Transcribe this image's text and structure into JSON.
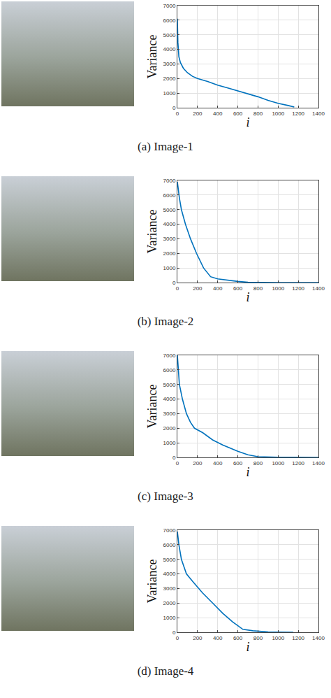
{
  "chart_data": [
    {
      "type": "line",
      "title": "(a) Image-1",
      "x_label": "i",
      "y_label": "Variance",
      "color": "#0072bd",
      "x": [
        0,
        5,
        15,
        30,
        60,
        100,
        150,
        200,
        300,
        400,
        500,
        600,
        700,
        800,
        900,
        1000,
        1100,
        1160
      ],
      "values": [
        6100,
        4500,
        3500,
        3100,
        2700,
        2400,
        2150,
        2000,
        1800,
        1550,
        1350,
        1150,
        950,
        750,
        500,
        300,
        150,
        50
      ],
      "xlim": [
        0,
        1400
      ],
      "ylim": [
        0,
        7000
      ],
      "xticks": [
        0,
        200,
        400,
        600,
        800,
        1000,
        1200,
        1400
      ],
      "yticks": [
        0,
        1000,
        2000,
        3000,
        4000,
        5000,
        6000,
        7000
      ],
      "grid": true
    },
    {
      "type": "line",
      "title": "(b) Image-2",
      "x_label": "i",
      "y_label": "Variance",
      "color": "#0072bd",
      "x": [
        0,
        20,
        40,
        80,
        130,
        190,
        260,
        330,
        400,
        500,
        600,
        700,
        800,
        1000,
        1200,
        1400
      ],
      "values": [
        6900,
        5800,
        5000,
        4000,
        3000,
        2000,
        1000,
        400,
        250,
        150,
        80,
        20,
        5,
        2,
        1,
        0
      ],
      "xlim": [
        0,
        1400
      ],
      "ylim": [
        0,
        7000
      ],
      "xticks": [
        0,
        200,
        400,
        600,
        800,
        1000,
        1200,
        1400
      ],
      "yticks": [
        0,
        1000,
        2000,
        3000,
        4000,
        5000,
        6000,
        7000
      ],
      "grid": true
    },
    {
      "type": "line",
      "title": "(c) Image-3",
      "x_label": "i",
      "y_label": "Variance",
      "color": "#0072bd",
      "x": [
        0,
        10,
        20,
        50,
        90,
        130,
        170,
        250,
        350,
        450,
        500,
        600,
        650,
        700,
        800,
        900,
        1000,
        1200,
        1400
      ],
      "values": [
        7000,
        5800,
        5000,
        4000,
        3000,
        2400,
        2000,
        1700,
        1200,
        850,
        700,
        420,
        300,
        180,
        50,
        20,
        10,
        5,
        0
      ],
      "xlim": [
        0,
        1400
      ],
      "ylim": [
        0,
        7000
      ],
      "xticks": [
        0,
        200,
        400,
        600,
        800,
        1000,
        1200,
        1400
      ],
      "yticks": [
        0,
        1000,
        2000,
        3000,
        4000,
        5000,
        6000,
        7000
      ],
      "grid": true
    },
    {
      "type": "line",
      "title": "(d) Image-4",
      "x_label": "i",
      "y_label": "Variance",
      "color": "#0072bd",
      "x": [
        0,
        15,
        40,
        90,
        150,
        250,
        350,
        450,
        550,
        650,
        750,
        900,
        1000,
        1150
      ],
      "values": [
        6900,
        6000,
        5000,
        4000,
        3500,
        2700,
        2000,
        1300,
        700,
        200,
        100,
        20,
        5,
        0
      ],
      "xlim": [
        0,
        1400
      ],
      "ylim": [
        0,
        7000
      ],
      "xticks": [
        0,
        200,
        400,
        600,
        800,
        1000,
        1200,
        1400
      ],
      "yticks": [
        0,
        1000,
        2000,
        3000,
        4000,
        5000,
        6000,
        7000
      ],
      "grid": true
    }
  ]
}
